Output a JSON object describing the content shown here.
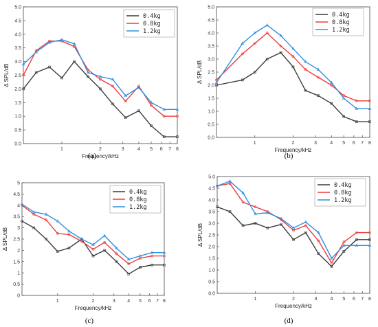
{
  "colors": {
    "black": "#3a3a3a",
    "red": "#ee3b3b",
    "blue": "#2f8fe0"
  },
  "chart_data": [
    {
      "type": "line",
      "panel_label": "(a)",
      "xlabel": "Frequency/kHz",
      "ylabel": "Δ SPL/dB",
      "x_scale": "log",
      "xlim": [
        0.5,
        8
      ],
      "ylim": [
        0,
        5
      ],
      "x_ticks": [
        1,
        2,
        3,
        4,
        5,
        6,
        7,
        8
      ],
      "x_tick_labels": [
        "1",
        "2",
        "3",
        "4",
        "5",
        "6",
        "7",
        "8"
      ],
      "y_ticks": [
        0,
        0.5,
        1,
        1.5,
        2,
        2.5,
        3,
        3.5,
        4,
        4.5,
        5
      ],
      "y_tick_labels": [
        "0.0",
        "0.5",
        "1.0",
        "1.5",
        "2.0",
        "2.5",
        "3.0",
        "3.5",
        "4.0",
        "4.5",
        "5.0"
      ],
      "x": [
        0.5,
        0.63,
        0.8,
        1.0,
        1.25,
        1.6,
        2.0,
        2.5,
        3.15,
        4.0,
        5.0,
        6.3,
        8.0
      ],
      "legend_position": "top-right",
      "series": [
        {
          "name": "0.4kg",
          "color": "#3a3a3a",
          "values": [
            2.0,
            2.6,
            2.8,
            2.4,
            3.0,
            2.45,
            2.0,
            1.45,
            0.95,
            1.2,
            0.65,
            0.25,
            0.25
          ]
        },
        {
          "name": "0.8kg",
          "color": "#ee3b3b",
          "values": [
            2.5,
            3.4,
            3.75,
            3.75,
            3.55,
            2.7,
            2.35,
            2.1,
            1.55,
            2.1,
            1.4,
            1.0,
            1.0
          ]
        },
        {
          "name": "1.2kg",
          "color": "#2f8fe0",
          "values": [
            2.9,
            3.35,
            3.7,
            3.8,
            3.65,
            2.6,
            2.45,
            2.35,
            1.75,
            2.05,
            1.5,
            1.25,
            1.25
          ]
        }
      ]
    },
    {
      "type": "line",
      "panel_label": "(b)",
      "xlabel": "Frequency/kHz",
      "ylabel": "Δ SPL/dB",
      "x_scale": "log",
      "xlim": [
        0.5,
        8
      ],
      "ylim": [
        0,
        5
      ],
      "x_ticks": [
        1,
        2,
        3,
        4,
        5,
        6,
        7,
        8
      ],
      "x_tick_labels": [
        "1",
        "2",
        "3",
        "4",
        "5",
        "6",
        "7",
        "8"
      ],
      "y_ticks": [
        0,
        0.5,
        1,
        1.5,
        2,
        2.5,
        3,
        3.5,
        4,
        4.5,
        5
      ],
      "y_tick_labels": [
        "0.0",
        "0.5",
        "1.0",
        "1.5",
        "2.0",
        "2.5",
        "3.0",
        "3.5",
        "4.0",
        "4.5",
        "5.0"
      ],
      "x": [
        0.5,
        0.8,
        1.0,
        1.25,
        1.6,
        2.0,
        2.5,
        3.15,
        4.0,
        5.0,
        6.3,
        8.0
      ],
      "legend_position": "top-right",
      "series": [
        {
          "name": "0.4kg",
          "color": "#3a3a3a",
          "values": [
            2.0,
            2.2,
            2.5,
            3.0,
            3.25,
            2.7,
            1.8,
            1.6,
            1.3,
            0.8,
            0.6,
            0.6
          ]
        },
        {
          "name": "0.8kg",
          "color": "#ee3b3b",
          "values": [
            2.2,
            3.2,
            3.6,
            4.0,
            3.5,
            3.1,
            2.6,
            2.3,
            2.0,
            1.6,
            1.4,
            1.4
          ]
        },
        {
          "name": "1.2kg",
          "color": "#2f8fe0",
          "values": [
            2.1,
            3.6,
            4.0,
            4.3,
            3.9,
            3.4,
            2.9,
            2.6,
            2.1,
            1.5,
            1.1,
            1.1
          ]
        }
      ]
    },
    {
      "type": "line",
      "panel_label": "(c)",
      "xlabel": "Frequency/kHz",
      "ylabel": "Δ SPL/dB",
      "x_scale": "log",
      "xlim": [
        0.5,
        8
      ],
      "ylim": [
        0,
        5
      ],
      "x_ticks": [
        1,
        2,
        3,
        4,
        5,
        6,
        7,
        8
      ],
      "x_tick_labels": [
        "1",
        "2",
        "3",
        "4",
        "5",
        "6",
        "7",
        "8"
      ],
      "y_ticks": [
        0,
        0.5,
        1,
        1.5,
        2,
        2.5,
        3,
        3.5,
        4,
        4.5,
        5
      ],
      "y_tick_labels": [
        "0",
        "0.5",
        "1",
        "1.5",
        "2",
        "2.5",
        "3",
        "3.5",
        "4",
        "4.5",
        "5"
      ],
      "x": [
        0.5,
        0.63,
        0.8,
        1.0,
        1.25,
        1.6,
        2.0,
        2.5,
        3.15,
        4.0,
        5.0,
        6.3,
        8.0
      ],
      "legend_position": "top-right",
      "series": [
        {
          "name": "0.4kg",
          "color": "#3a3a3a",
          "values": [
            3.3,
            3.0,
            2.5,
            1.95,
            2.1,
            2.5,
            1.75,
            2.0,
            1.5,
            0.95,
            1.25,
            1.35,
            1.35
          ]
        },
        {
          "name": "0.8kg",
          "color": "#ee3b3b",
          "values": [
            4.0,
            3.6,
            3.35,
            2.75,
            2.7,
            2.4,
            2.05,
            2.35,
            1.85,
            1.4,
            1.65,
            1.75,
            1.75
          ]
        },
        {
          "name": "1.2kg",
          "color": "#2f8fe0",
          "values": [
            4.05,
            3.7,
            3.6,
            3.3,
            2.85,
            2.5,
            2.25,
            2.65,
            2.1,
            1.6,
            1.75,
            1.9,
            1.9
          ]
        }
      ]
    },
    {
      "type": "line",
      "panel_label": "(d)",
      "xlabel": "Frequency/kHz",
      "ylabel": "Δ SPL/dB",
      "x_scale": "log",
      "xlim": [
        0.5,
        8
      ],
      "ylim": [
        0,
        5
      ],
      "x_ticks": [
        1,
        2,
        3,
        4,
        5,
        6,
        7,
        8
      ],
      "x_tick_labels": [
        "1",
        "2",
        "3",
        "4",
        "5",
        "6",
        "7",
        "8"
      ],
      "y_ticks": [
        0,
        0.5,
        1,
        1.5,
        2,
        2.5,
        3,
        3.5,
        4,
        4.5,
        5
      ],
      "y_tick_labels": [
        "0.0",
        "0.5",
        "1.0",
        "1.5",
        "2.0",
        "2.5",
        "3.0",
        "3.5",
        "4.0",
        "4.5",
        "5.0"
      ],
      "x": [
        0.5,
        0.63,
        0.8,
        1.0,
        1.25,
        1.6,
        2.0,
        2.5,
        3.15,
        4.0,
        5.0,
        6.3,
        8.0
      ],
      "legend_position": "top-right",
      "series": [
        {
          "name": "0.4kg",
          "color": "#3a3a3a",
          "values": [
            3.7,
            3.5,
            2.9,
            3.0,
            2.8,
            2.95,
            2.3,
            2.6,
            1.7,
            1.15,
            1.8,
            2.3,
            2.3
          ]
        },
        {
          "name": "0.8kg",
          "color": "#ee3b3b",
          "values": [
            4.6,
            4.7,
            3.9,
            3.7,
            3.5,
            3.15,
            2.7,
            2.9,
            2.25,
            1.3,
            2.2,
            2.6,
            2.6
          ]
        },
        {
          "name": "1.2kg",
          "color": "#2f8fe0",
          "values": [
            4.6,
            4.8,
            4.3,
            3.4,
            3.45,
            3.2,
            2.8,
            3.05,
            2.6,
            1.5,
            2.05,
            2.05,
            2.05
          ]
        }
      ]
    }
  ]
}
